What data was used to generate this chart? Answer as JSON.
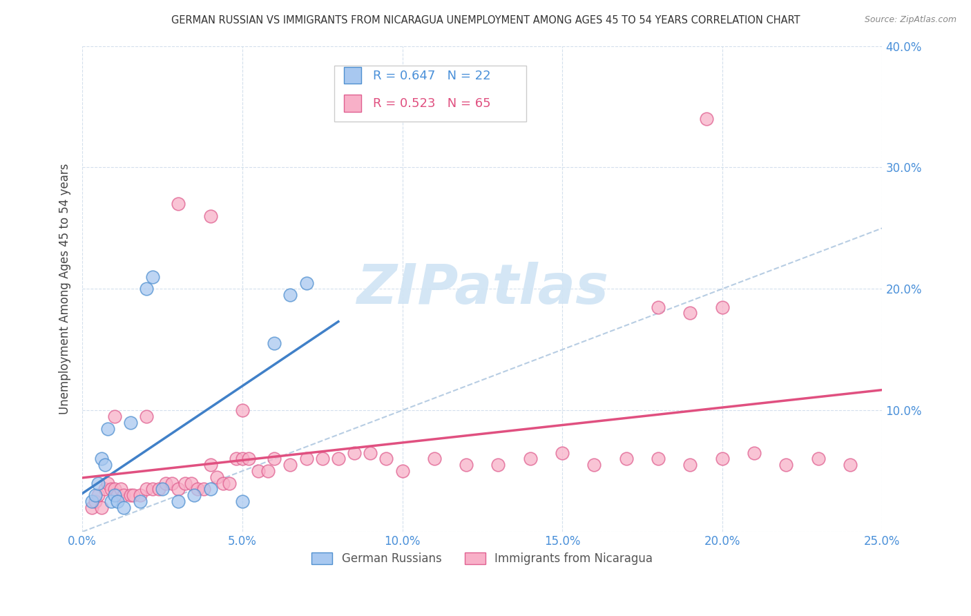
{
  "title": "GERMAN RUSSIAN VS IMMIGRANTS FROM NICARAGUA UNEMPLOYMENT AMONG AGES 45 TO 54 YEARS CORRELATION CHART",
  "source": "Source: ZipAtlas.com",
  "ylabel": "Unemployment Among Ages 45 to 54 years",
  "xlim": [
    0.0,
    0.25
  ],
  "ylim": [
    0.0,
    0.4
  ],
  "xticks": [
    0.0,
    0.05,
    0.1,
    0.15,
    0.2,
    0.25
  ],
  "xtick_labels": [
    "0.0%",
    "5.0%",
    "10.0%",
    "15.0%",
    "20.0%",
    "25.0%"
  ],
  "yticks": [
    0.0,
    0.1,
    0.2,
    0.3,
    0.4
  ],
  "ytick_labels": [
    "",
    "10.0%",
    "20.0%",
    "30.0%",
    "40.0%"
  ],
  "legend1_label": "German Russians",
  "legend2_label": "Immigrants from Nicaragua",
  "r1": 0.647,
  "n1": 22,
  "r2": 0.523,
  "n2": 65,
  "color_blue_fill": "#A8C8F0",
  "color_blue_edge": "#5090D0",
  "color_pink_fill": "#F8B0C8",
  "color_pink_edge": "#E06090",
  "color_line_blue": "#4080C8",
  "color_line_pink": "#E05080",
  "color_diag": "#B0C8E0",
  "watermark_color": "#D0E4F4",
  "german_russian_x": [
    0.003,
    0.004,
    0.005,
    0.006,
    0.007,
    0.008,
    0.009,
    0.01,
    0.011,
    0.013,
    0.015,
    0.018,
    0.02,
    0.022,
    0.025,
    0.03,
    0.035,
    0.04,
    0.05,
    0.06,
    0.065,
    0.07
  ],
  "german_russian_y": [
    0.025,
    0.03,
    0.04,
    0.06,
    0.055,
    0.085,
    0.025,
    0.03,
    0.025,
    0.02,
    0.09,
    0.025,
    0.2,
    0.21,
    0.035,
    0.025,
    0.03,
    0.035,
    0.025,
    0.155,
    0.195,
    0.205
  ],
  "nicaragua_x": [
    0.003,
    0.004,
    0.005,
    0.006,
    0.007,
    0.008,
    0.009,
    0.01,
    0.011,
    0.012,
    0.013,
    0.015,
    0.016,
    0.018,
    0.02,
    0.022,
    0.024,
    0.026,
    0.028,
    0.03,
    0.032,
    0.034,
    0.036,
    0.038,
    0.04,
    0.042,
    0.044,
    0.046,
    0.048,
    0.05,
    0.052,
    0.055,
    0.058,
    0.06,
    0.065,
    0.07,
    0.075,
    0.08,
    0.085,
    0.09,
    0.095,
    0.1,
    0.11,
    0.12,
    0.13,
    0.14,
    0.15,
    0.16,
    0.17,
    0.18,
    0.19,
    0.195,
    0.2,
    0.21,
    0.22,
    0.23,
    0.24,
    0.18,
    0.19,
    0.2,
    0.01,
    0.02,
    0.03,
    0.04,
    0.05
  ],
  "nicaragua_y": [
    0.02,
    0.025,
    0.03,
    0.02,
    0.035,
    0.04,
    0.035,
    0.035,
    0.03,
    0.035,
    0.03,
    0.03,
    0.03,
    0.03,
    0.035,
    0.035,
    0.035,
    0.04,
    0.04,
    0.035,
    0.04,
    0.04,
    0.035,
    0.035,
    0.055,
    0.045,
    0.04,
    0.04,
    0.06,
    0.06,
    0.06,
    0.05,
    0.05,
    0.06,
    0.055,
    0.06,
    0.06,
    0.06,
    0.065,
    0.065,
    0.06,
    0.05,
    0.06,
    0.055,
    0.055,
    0.06,
    0.065,
    0.055,
    0.06,
    0.06,
    0.055,
    0.34,
    0.06,
    0.065,
    0.055,
    0.06,
    0.055,
    0.185,
    0.18,
    0.185,
    0.095,
    0.095,
    0.27,
    0.26,
    0.1
  ]
}
